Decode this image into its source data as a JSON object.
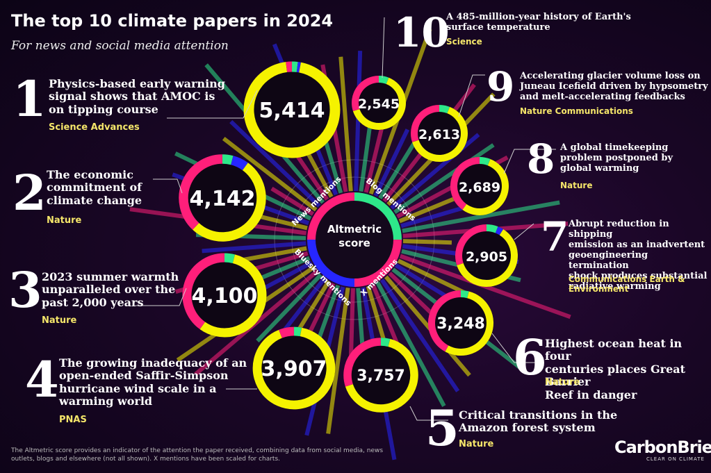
{
  "title": "The top 10 climate papers in 2024",
  "subtitle": "For news and social media attention",
  "footnote": "The Altmetric score provides an indicator of the attention the paper received, combining  data from social media, news outlets, blogs and elsewhere (not all shown). X mentions have been scaled for charts.",
  "logo": "CarbonBrief",
  "tagline": "CLEAR ON CLIMATE",
  "centre": {
    "label_line1": "Altmetric",
    "label_line2": "score",
    "segment_labels": [
      "News mentions",
      "Blog mentions",
      "X mentions",
      "Bluesky mentions"
    ]
  },
  "colors": {
    "news": "#ff1f7a",
    "blog": "#2ee88a",
    "x": "#f5f200",
    "bluesky": "#2626ff",
    "journal": "#f5e66a"
  },
  "papers": [
    {
      "rank": "1",
      "title_lines": [
        "Physics-based early warning",
        "signal shows that AMOC is",
        "on tipping course"
      ],
      "journal": "Science Advances",
      "score": "5,414"
    },
    {
      "rank": "2",
      "title_lines": [
        "The economic",
        "commitment of",
        "climate change"
      ],
      "journal": "Nature",
      "score": "4,142"
    },
    {
      "rank": "3",
      "title_lines": [
        "2023 summer warmth",
        "unparalleled over the",
        "past 2,000 years"
      ],
      "journal": "Nature",
      "score": "4,100"
    },
    {
      "rank": "4",
      "title_lines": [
        "The growing inadequacy of an",
        "open-ended Saffir-Simpson",
        "hurricane wind scale in a",
        "warming world"
      ],
      "journal": "PNAS",
      "score": "3,907"
    },
    {
      "rank": "5",
      "title_lines": [
        "Critical transitions in the",
        "Amazon forest system"
      ],
      "journal": "Nature",
      "score": "3,757"
    },
    {
      "rank": "6",
      "title_lines": [
        "Highest ocean heat in four",
        "centuries places Great Barrier",
        "Reef in danger"
      ],
      "journal": "Nature",
      "score": "3,248"
    },
    {
      "rank": "7",
      "title_lines": [
        "Abrupt reduction in shipping",
        "emission as an inadvertent",
        "geoengineering termination",
        "shock produces substantial",
        "radiative warming"
      ],
      "journal_lines": [
        "Communications Earth &",
        "Environment"
      ],
      "score": "2,905"
    },
    {
      "rank": "8",
      "title_lines": [
        "A global timekeeping",
        "problem postponed by",
        "global warming"
      ],
      "journal": "Nature",
      "score": "2,689"
    },
    {
      "rank": "9",
      "title_lines": [
        "Accelerating glacier volume loss on",
        "Juneau Icefield driven by hypsometry",
        "and melt-accelerating feedbacks"
      ],
      "journal": "Nature Communications",
      "score": "2,613"
    },
    {
      "rank": "10",
      "title_lines": [
        "A 485-million-year history of Earth's",
        "surface temperature"
      ],
      "journal": "Science",
      "score": "2,545"
    }
  ],
  "chart_data": {
    "type": "donut",
    "categories": [
      "1",
      "2",
      "3",
      "4",
      "5",
      "6",
      "7",
      "8",
      "9",
      "10"
    ],
    "values": [
      5414,
      4142,
      4100,
      3907,
      3757,
      3248,
      2905,
      2689,
      2613,
      2545
    ],
    "series_shares": [
      {
        "news": 0.02,
        "blog": 0.02,
        "bluesky": 0.01,
        "x": 0.95
      },
      {
        "news": 0.38,
        "blog": 0.04,
        "bluesky": 0.06,
        "x": 0.52
      },
      {
        "news": 0.4,
        "blog": 0.04,
        "bluesky": 0.0,
        "x": 0.56
      },
      {
        "news": 0.06,
        "blog": 0.03,
        "bluesky": 0.0,
        "x": 0.91
      },
      {
        "news": 0.3,
        "blog": 0.04,
        "bluesky": 0.0,
        "x": 0.66
      },
      {
        "news": 0.42,
        "blog": 0.04,
        "bluesky": 0.0,
        "x": 0.54
      },
      {
        "news": 0.3,
        "blog": 0.06,
        "bluesky": 0.03,
        "x": 0.61
      },
      {
        "news": 0.4,
        "blog": 0.06,
        "bluesky": 0.0,
        "x": 0.54
      },
      {
        "news": 0.3,
        "blog": 0.06,
        "bluesky": 0.0,
        "x": 0.64
      },
      {
        "news": 0.3,
        "blog": 0.06,
        "bluesky": 0.0,
        "x": 0.64
      }
    ]
  }
}
